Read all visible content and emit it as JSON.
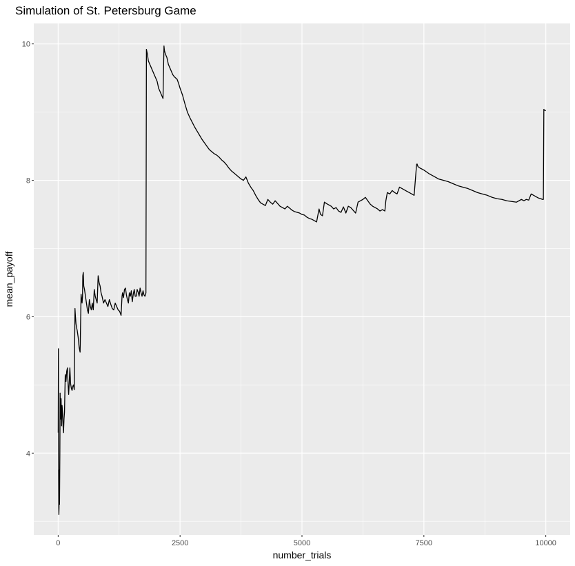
{
  "chart_data": {
    "type": "line",
    "title": "Simulation of St. Petersburg Game",
    "xlabel": "number_trials",
    "ylabel": "mean_payoff",
    "xlim": [
      -500,
      10500
    ],
    "ylim": [
      2.8,
      10.3
    ],
    "x_ticks": [
      0,
      2500,
      5000,
      7500,
      10000
    ],
    "x_tick_labels": [
      "0",
      "2500",
      "5000",
      "7500",
      "10000"
    ],
    "y_ticks": [
      4,
      6,
      8,
      10
    ],
    "y_tick_labels": [
      "4",
      "6",
      "8",
      "10"
    ],
    "grid": true,
    "series": [
      {
        "color": "#000000",
        "x": [
          1,
          5,
          8,
          12,
          15,
          18,
          22,
          28,
          35,
          40,
          46,
          52,
          60,
          70,
          80,
          90,
          100,
          110,
          120,
          130,
          145,
          160,
          175,
          190,
          205,
          215,
          225,
          240,
          255,
          270,
          285,
          300,
          315,
          330,
          345,
          355,
          365,
          375,
          390,
          410,
          430,
          450,
          470,
          490,
          500,
          505,
          515,
          525,
          540,
          560,
          580,
          600,
          620,
          640,
          660,
          680,
          700,
          720,
          740,
          760,
          780,
          800,
          820,
          840,
          860,
          880,
          900,
          930,
          960,
          990,
          1020,
          1050,
          1080,
          1110,
          1140,
          1170,
          1200,
          1230,
          1260,
          1290,
          1310,
          1320,
          1340,
          1360,
          1380,
          1400,
          1420,
          1440,
          1460,
          1480,
          1500,
          1520,
          1540,
          1560,
          1580,
          1600,
          1620,
          1640,
          1660,
          1680,
          1700,
          1720,
          1740,
          1760,
          1780,
          1800,
          1810,
          1815,
          1830,
          1850,
          1880,
          1910,
          1940,
          1970,
          2000,
          2030,
          2060,
          2090,
          2120,
          2150,
          2170,
          2180,
          2200,
          2230,
          2260,
          2290,
          2320,
          2350,
          2380,
          2410,
          2440,
          2470,
          2500,
          2550,
          2600,
          2650,
          2700,
          2750,
          2800,
          2850,
          2900,
          2950,
          3000,
          3050,
          3100,
          3150,
          3200,
          3250,
          3300,
          3350,
          3400,
          3450,
          3500,
          3550,
          3600,
          3650,
          3700,
          3750,
          3800,
          3850,
          3900,
          3950,
          4000,
          4050,
          4100,
          4150,
          4200,
          4250,
          4300,
          4350,
          4400,
          4450,
          4500,
          4550,
          4600,
          4650,
          4700,
          4750,
          4800,
          4850,
          4900,
          4950,
          5000,
          5050,
          5100,
          5150,
          5200,
          5250,
          5300,
          5350,
          5380,
          5420,
          5460,
          5500,
          5550,
          5600,
          5650,
          5700,
          5750,
          5800,
          5850,
          5900,
          5950,
          6000,
          6050,
          6100,
          6150,
          6200,
          6250,
          6300,
          6350,
          6400,
          6450,
          6500,
          6550,
          6600,
          6650,
          6700,
          6720,
          6750,
          6800,
          6850,
          6900,
          6950,
          7000,
          7050,
          7100,
          7150,
          7200,
          7250,
          7300,
          7350,
          7360,
          7380,
          7420,
          7500,
          7600,
          7700,
          7800,
          7900,
          8000,
          8100,
          8200,
          8300,
          8400,
          8500,
          8600,
          8700,
          8800,
          8900,
          9000,
          9100,
          9200,
          9300,
          9400,
          9500,
          9550,
          9600,
          9650,
          9700,
          9750,
          9800,
          9850,
          9900,
          9930,
          9950,
          9960,
          9970,
          10000
        ],
        "y": [
          4.3,
          5.53,
          3.9,
          3.2,
          3.1,
          3.2,
          3.75,
          3.25,
          4.0,
          4.88,
          4.6,
          4.5,
          4.8,
          4.4,
          4.7,
          4.6,
          4.4,
          4.3,
          4.5,
          4.6,
          5.15,
          5.05,
          5.2,
          5.25,
          4.98,
          4.86,
          5.0,
          5.25,
          5.02,
          4.95,
          4.92,
          4.98,
          5.0,
          4.93,
          6.12,
          6.0,
          5.9,
          5.85,
          5.8,
          5.7,
          5.55,
          5.48,
          6.33,
          6.2,
          6.3,
          6.6,
          6.65,
          6.45,
          6.4,
          6.3,
          6.2,
          6.1,
          6.05,
          6.25,
          6.15,
          6.1,
          6.2,
          6.1,
          6.4,
          6.3,
          6.25,
          6.2,
          6.6,
          6.5,
          6.45,
          6.35,
          6.3,
          6.2,
          6.25,
          6.2,
          6.15,
          6.25,
          6.18,
          6.12,
          6.1,
          6.2,
          6.15,
          6.1,
          6.08,
          6.02,
          6.3,
          6.35,
          6.28,
          6.4,
          6.42,
          6.32,
          6.25,
          6.2,
          6.35,
          6.3,
          6.38,
          6.22,
          6.33,
          6.4,
          6.3,
          6.3,
          6.4,
          6.36,
          6.3,
          6.42,
          6.35,
          6.3,
          6.38,
          6.32,
          6.3,
          6.35,
          9.92,
          9.9,
          9.85,
          9.75,
          9.7,
          9.65,
          9.6,
          9.55,
          9.5,
          9.45,
          9.35,
          9.3,
          9.25,
          9.2,
          9.97,
          9.9,
          9.85,
          9.8,
          9.7,
          9.65,
          9.6,
          9.55,
          9.52,
          9.5,
          9.48,
          9.42,
          9.35,
          9.25,
          9.12,
          9.0,
          8.92,
          8.85,
          8.78,
          8.72,
          8.66,
          8.6,
          8.55,
          8.5,
          8.45,
          8.42,
          8.39,
          8.37,
          8.34,
          8.3,
          8.27,
          8.23,
          8.18,
          8.14,
          8.11,
          8.08,
          8.05,
          8.02,
          8.0,
          8.05,
          7.96,
          7.9,
          7.85,
          7.78,
          7.72,
          7.67,
          7.65,
          7.63,
          7.72,
          7.68,
          7.65,
          7.7,
          7.66,
          7.62,
          7.6,
          7.58,
          7.62,
          7.59,
          7.56,
          7.54,
          7.53,
          7.52,
          7.5,
          7.49,
          7.46,
          7.44,
          7.43,
          7.41,
          7.39,
          7.58,
          7.5,
          7.48,
          7.68,
          7.66,
          7.64,
          7.62,
          7.58,
          7.6,
          7.55,
          7.53,
          7.61,
          7.52,
          7.62,
          7.6,
          7.56,
          7.52,
          7.68,
          7.7,
          7.72,
          7.75,
          7.7,
          7.65,
          7.62,
          7.6,
          7.58,
          7.55,
          7.57,
          7.55,
          7.7,
          7.82,
          7.8,
          7.85,
          7.82,
          7.8,
          7.9,
          7.88,
          7.86,
          7.84,
          7.82,
          7.8,
          7.78,
          8.23,
          8.24,
          8.2,
          8.18,
          8.15,
          8.1,
          8.06,
          8.02,
          8.0,
          7.98,
          7.95,
          7.92,
          7.9,
          7.88,
          7.85,
          7.82,
          7.8,
          7.78,
          7.75,
          7.73,
          7.72,
          7.7,
          7.69,
          7.68,
          7.72,
          7.7,
          7.72,
          7.71,
          7.8,
          7.78,
          7.76,
          7.74,
          7.73,
          7.72,
          7.72,
          9.04,
          9.03,
          9.02
        ]
      }
    ]
  }
}
